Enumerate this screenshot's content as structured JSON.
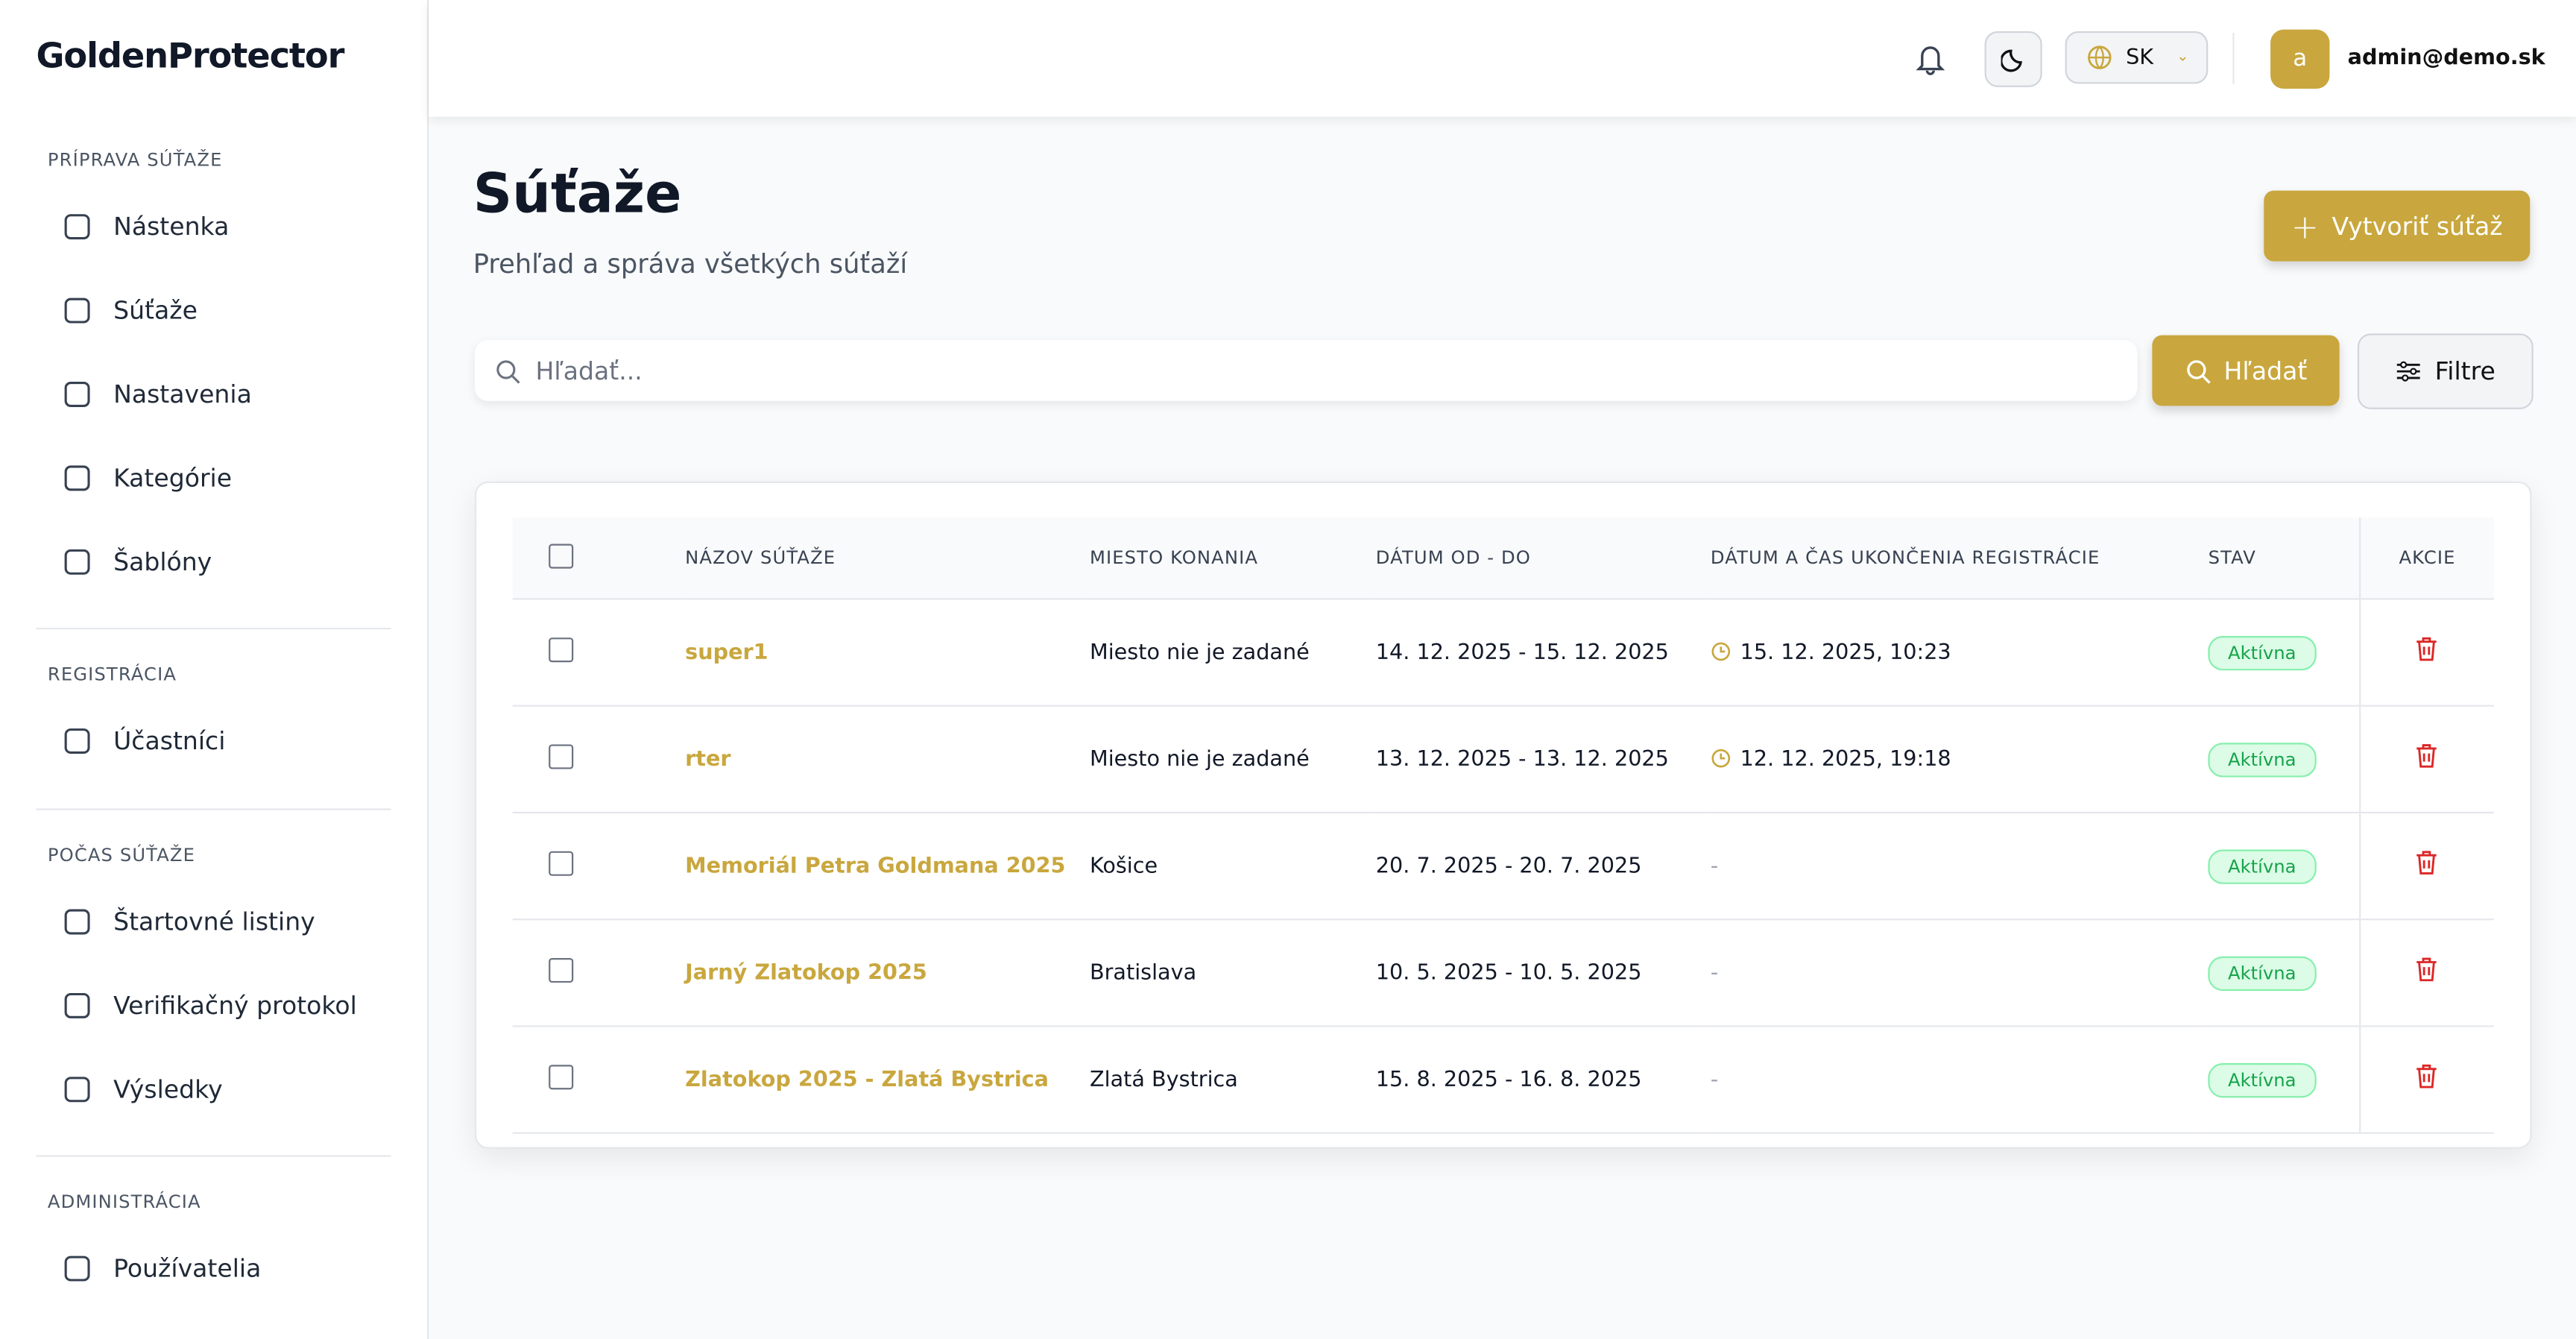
{
  "brand": "GoldenProtector",
  "sidebar": [
    {
      "title": "PRÍPRAVA SÚŤAŽE",
      "items": [
        "Nástenka",
        "Súťaže",
        "Nastavenia",
        "Kategórie",
        "Šablóny"
      ]
    },
    {
      "title": "REGISTRÁCIA",
      "items": [
        "Účastníci"
      ]
    },
    {
      "title": "POČAS SÚŤAŽE",
      "items": [
        "Štartovné listiny",
        "Verifikačný protokol",
        "Výsledky"
      ]
    },
    {
      "title": "ADMINISTRÁCIA",
      "items": [
        "Používatelia"
      ]
    }
  ],
  "header": {
    "language": "SK",
    "avatar": "a",
    "user": "admin@demo.sk"
  },
  "page": {
    "title": "Súťaže",
    "subtitle": "Prehľad a správa všetkých súťaží",
    "create": "Vytvoriť súťaž",
    "search_placeholder": "Hľadať...",
    "search_button": "Hľadať",
    "filter_button": "Filtre"
  },
  "table": {
    "columns": [
      "NÁZOV SÚŤAŽE",
      "MIESTO KONANIA",
      "DÁTUM OD - DO",
      "DÁTUM A ČAS UKONČENIA REGISTRÁCIE",
      "STAV",
      "AKCIE"
    ],
    "rows": [
      [
        "super1",
        "Miesto nie je zadané",
        "14. 12. 2025 - 15. 12. 2025",
        "15. 12. 2025, 10:23",
        "Aktívna"
      ],
      [
        "rter",
        "Miesto nie je zadané",
        "13. 12. 2025 - 13. 12. 2025",
        "12. 12. 2025, 19:18",
        "Aktívna"
      ],
      [
        "Memoriál Petra Goldmana 2025",
        "Košice",
        "20. 7. 2025 - 20. 7. 2025",
        "-",
        "Aktívna"
      ],
      [
        "Jarný Zlatokop 2025",
        "Bratislava",
        "10. 5. 2025 - 10. 5. 2025",
        "-",
        "Aktívna"
      ],
      [
        "Zlatokop 2025 - Zlatá Bystrica",
        "Zlatá Bystrica",
        "15. 8. 2025 - 16. 8. 2025",
        "-",
        "Aktívna"
      ]
    ]
  }
}
